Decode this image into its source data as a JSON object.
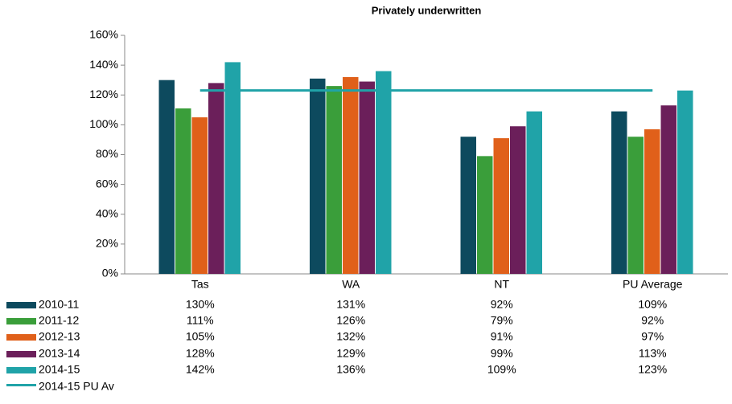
{
  "chart_data": {
    "type": "bar",
    "title": "Privately underwritten",
    "categories": [
      "Tas",
      "WA",
      "NT",
      "PU Average"
    ],
    "series": [
      {
        "name": "2010-11",
        "color": "#0d4a5e",
        "values": [
          130,
          131,
          92,
          109
        ],
        "value_labels": [
          "130%",
          "131%",
          "92%",
          "109%"
        ]
      },
      {
        "name": "2011-12",
        "color": "#3a9e3a",
        "values": [
          111,
          126,
          79,
          92
        ],
        "value_labels": [
          "111%",
          "126%",
          "79%",
          "92%"
        ]
      },
      {
        "name": "2012-13",
        "color": "#e0601a",
        "values": [
          105,
          132,
          91,
          97
        ],
        "value_labels": [
          "105%",
          "132%",
          "91%",
          "97%"
        ]
      },
      {
        "name": "2013-14",
        "color": "#6b1f5a",
        "values": [
          128,
          129,
          99,
          113
        ],
        "value_labels": [
          "128%",
          "129%",
          "99%",
          "113%"
        ]
      },
      {
        "name": "2014-15",
        "color": "#20a3a8",
        "values": [
          142,
          136,
          109,
          123
        ],
        "value_labels": [
          "142%",
          "136%",
          "109%",
          "123%"
        ]
      },
      {
        "name": "2014-15 PU Av",
        "type": "line",
        "color": "#20a3a8",
        "values": [
          123,
          123,
          123,
          123
        ]
      }
    ],
    "ylim": [
      0,
      160
    ],
    "yticks": [
      {
        "value": 0,
        "label": "0%"
      },
      {
        "value": 20,
        "label": "20%"
      },
      {
        "value": 40,
        "label": "40%"
      },
      {
        "value": 60,
        "label": "60%"
      },
      {
        "value": 80,
        "label": "80%"
      },
      {
        "value": 100,
        "label": "100%"
      },
      {
        "value": 120,
        "label": "120%"
      },
      {
        "value": 140,
        "label": "140%"
      },
      {
        "value": 160,
        "label": "160%"
      }
    ],
    "grid": false
  }
}
